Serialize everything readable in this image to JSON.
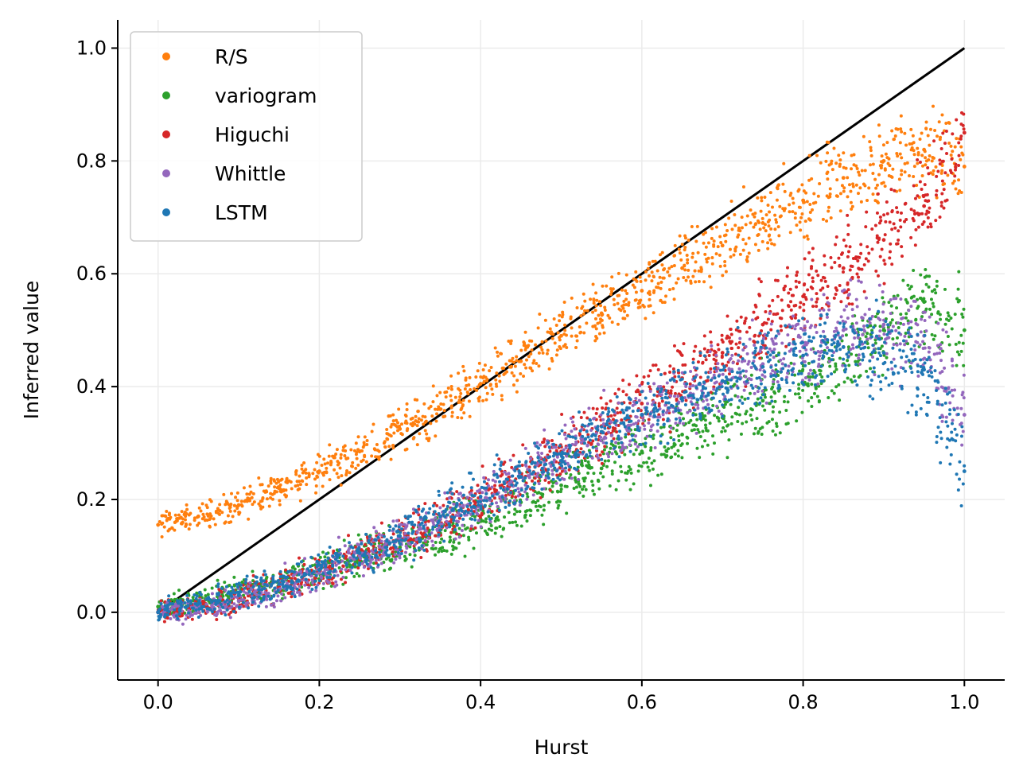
{
  "chart_data": {
    "type": "scatter",
    "xlabel": "Hurst",
    "ylabel": "Inferred value",
    "xlim": [
      -0.05,
      1.05
    ],
    "ylim": [
      -0.12,
      1.05
    ],
    "xticks": [
      0.0,
      0.2,
      0.4,
      0.6,
      0.8,
      1.0
    ],
    "xtick_labels": [
      "0.0",
      "0.2",
      "0.4",
      "0.6",
      "0.8",
      "1.0"
    ],
    "yticks": [
      0.0,
      0.2,
      0.4,
      0.6,
      0.8,
      1.0
    ],
    "ytick_labels": [
      "0.0",
      "0.2",
      "0.4",
      "0.6",
      "0.8",
      "1.0"
    ],
    "grid": true,
    "legend_position": "top-left",
    "reference_line": {
      "x": [
        0.0,
        1.0
      ],
      "y": [
        0.0,
        1.0
      ],
      "color": "#000000"
    },
    "series": [
      {
        "name": "R/S",
        "color": "#ff7f0e",
        "x": [
          0.0,
          0.05,
          0.1,
          0.15,
          0.2,
          0.25,
          0.3,
          0.35,
          0.4,
          0.45,
          0.5,
          0.55,
          0.6,
          0.65,
          0.7,
          0.75,
          0.8,
          0.85,
          0.9,
          0.95,
          1.0
        ],
        "y": [
          0.155,
          0.17,
          0.19,
          0.22,
          0.25,
          0.285,
          0.325,
          0.36,
          0.405,
          0.445,
          0.49,
          0.53,
          0.57,
          0.61,
          0.65,
          0.69,
          0.73,
          0.77,
          0.8,
          0.82,
          0.79
        ]
      },
      {
        "name": "variogram",
        "color": "#2ca02c",
        "x": [
          0.0,
          0.05,
          0.1,
          0.15,
          0.2,
          0.25,
          0.3,
          0.35,
          0.4,
          0.45,
          0.5,
          0.55,
          0.6,
          0.65,
          0.7,
          0.75,
          0.8,
          0.85,
          0.9,
          0.95,
          1.0
        ],
        "y": [
          0.01,
          0.02,
          0.035,
          0.055,
          0.075,
          0.095,
          0.115,
          0.14,
          0.165,
          0.195,
          0.225,
          0.255,
          0.285,
          0.315,
          0.345,
          0.375,
          0.405,
          0.44,
          0.5,
          0.55,
          0.5
        ]
      },
      {
        "name": "Higuchi",
        "color": "#d62728",
        "x": [
          0.0,
          0.05,
          0.1,
          0.15,
          0.2,
          0.25,
          0.3,
          0.35,
          0.4,
          0.45,
          0.5,
          0.55,
          0.6,
          0.65,
          0.7,
          0.75,
          0.8,
          0.85,
          0.9,
          0.95,
          1.0
        ],
        "y": [
          0.0,
          0.01,
          0.025,
          0.045,
          0.07,
          0.1,
          0.13,
          0.165,
          0.2,
          0.24,
          0.285,
          0.33,
          0.37,
          0.415,
          0.46,
          0.51,
          0.56,
          0.61,
          0.66,
          0.72,
          0.85
        ]
      },
      {
        "name": "Whittle",
        "color": "#9467bd",
        "x": [
          0.0,
          0.05,
          0.1,
          0.15,
          0.2,
          0.25,
          0.3,
          0.35,
          0.4,
          0.45,
          0.5,
          0.55,
          0.6,
          0.65,
          0.7,
          0.75,
          0.8,
          0.85,
          0.9,
          0.95,
          1.0
        ],
        "y": [
          0.0,
          0.01,
          0.02,
          0.04,
          0.07,
          0.1,
          0.13,
          0.165,
          0.2,
          0.24,
          0.28,
          0.32,
          0.35,
          0.38,
          0.41,
          0.44,
          0.47,
          0.5,
          0.51,
          0.49,
          0.35
        ]
      },
      {
        "name": "LSTM",
        "color": "#1f77b4",
        "x": [
          0.0,
          0.05,
          0.1,
          0.15,
          0.2,
          0.25,
          0.3,
          0.35,
          0.4,
          0.45,
          0.5,
          0.55,
          0.6,
          0.65,
          0.7,
          0.75,
          0.8,
          0.85,
          0.9,
          0.95,
          1.0
        ],
        "y": [
          0.0,
          0.015,
          0.03,
          0.05,
          0.075,
          0.105,
          0.135,
          0.17,
          0.205,
          0.24,
          0.28,
          0.32,
          0.35,
          0.38,
          0.41,
          0.435,
          0.455,
          0.47,
          0.46,
          0.43,
          0.25
        ]
      }
    ]
  }
}
